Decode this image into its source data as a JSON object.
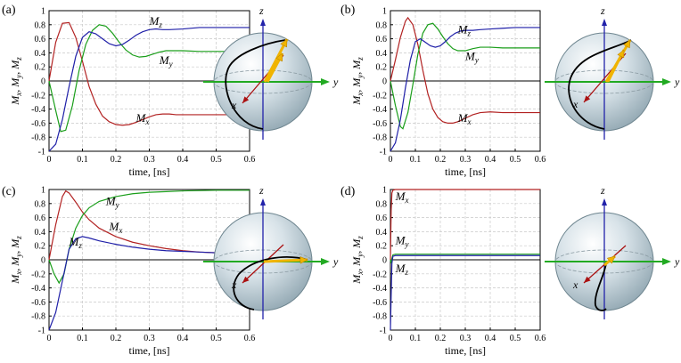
{
  "colors": {
    "Mx": "#b22222",
    "My": "#1a9e1a",
    "Mz": "#1f1fa8",
    "y_axis": "#22aa22",
    "z_axis": "#2222aa",
    "x_axis": "#aa1111",
    "arrow": "#f0b400",
    "trajectory": "#000000"
  },
  "axes_common": {
    "xlabel": "time, [ns]",
    "ylabel_main": "M",
    "ylabel_subs": [
      "x",
      "y",
      "z"
    ],
    "xlim": [
      0,
      0.6
    ],
    "ylim": [
      -1,
      1
    ],
    "xticks": [
      "0",
      "0.1",
      "0.2",
      "0.3",
      "0.4",
      "0.5",
      "0.6"
    ],
    "yticks": [
      "-1",
      "-0.8",
      "-0.6",
      "-0.4",
      "-0.2",
      "0",
      "0.2",
      "0.4",
      "0.6",
      "0.8",
      "1"
    ],
    "grid": true
  },
  "sphere_axis_labels": {
    "x": "x",
    "y": "y",
    "z": "z"
  },
  "chart_data": [
    {
      "type": "line",
      "panel": "(a)",
      "series": [
        {
          "name": "Mx",
          "label_sub": "x",
          "color": "Mx",
          "points": [
            [
              0,
              0
            ],
            [
              0.02,
              0.55
            ],
            [
              0.04,
              0.82
            ],
            [
              0.06,
              0.83
            ],
            [
              0.08,
              0.62
            ],
            [
              0.1,
              0.28
            ],
            [
              0.12,
              -0.08
            ],
            [
              0.14,
              -0.33
            ],
            [
              0.16,
              -0.5
            ],
            [
              0.18,
              -0.58
            ],
            [
              0.2,
              -0.62
            ],
            [
              0.22,
              -0.63
            ],
            [
              0.24,
              -0.62
            ],
            [
              0.26,
              -0.59
            ],
            [
              0.28,
              -0.55
            ],
            [
              0.3,
              -0.51
            ],
            [
              0.32,
              -0.48
            ],
            [
              0.34,
              -0.47
            ],
            [
              0.36,
              -0.47
            ],
            [
              0.38,
              -0.48
            ],
            [
              0.4,
              -0.48
            ],
            [
              0.45,
              -0.48
            ],
            [
              0.5,
              -0.48
            ],
            [
              0.55,
              -0.48
            ],
            [
              0.6,
              -0.48
            ]
          ]
        },
        {
          "name": "My",
          "label_sub": "y",
          "color": "My",
          "points": [
            [
              0,
              0
            ],
            [
              0.02,
              -0.42
            ],
            [
              0.035,
              -0.72
            ],
            [
              0.05,
              -0.7
            ],
            [
              0.07,
              -0.35
            ],
            [
              0.09,
              0.15
            ],
            [
              0.11,
              0.52
            ],
            [
              0.13,
              0.72
            ],
            [
              0.15,
              0.8
            ],
            [
              0.17,
              0.78
            ],
            [
              0.19,
              0.68
            ],
            [
              0.21,
              0.55
            ],
            [
              0.23,
              0.44
            ],
            [
              0.25,
              0.37
            ],
            [
              0.27,
              0.34
            ],
            [
              0.29,
              0.35
            ],
            [
              0.31,
              0.38
            ],
            [
              0.33,
              0.41
            ],
            [
              0.35,
              0.43
            ],
            [
              0.4,
              0.43
            ],
            [
              0.45,
              0.42
            ],
            [
              0.5,
              0.42
            ],
            [
              0.55,
              0.42
            ],
            [
              0.6,
              0.42
            ]
          ]
        },
        {
          "name": "Mz",
          "label_sub": "z",
          "color": "Mz",
          "points": [
            [
              0,
              -1
            ],
            [
              0.02,
              -0.9
            ],
            [
              0.04,
              -0.55
            ],
            [
              0.06,
              -0.08
            ],
            [
              0.08,
              0.35
            ],
            [
              0.1,
              0.62
            ],
            [
              0.12,
              0.7
            ],
            [
              0.14,
              0.67
            ],
            [
              0.16,
              0.6
            ],
            [
              0.18,
              0.53
            ],
            [
              0.2,
              0.5
            ],
            [
              0.22,
              0.52
            ],
            [
              0.24,
              0.58
            ],
            [
              0.26,
              0.65
            ],
            [
              0.28,
              0.7
            ],
            [
              0.3,
              0.73
            ],
            [
              0.32,
              0.74
            ],
            [
              0.34,
              0.73
            ],
            [
              0.36,
              0.73
            ],
            [
              0.4,
              0.74
            ],
            [
              0.45,
              0.76
            ],
            [
              0.5,
              0.76
            ],
            [
              0.55,
              0.76
            ],
            [
              0.6,
              0.76
            ]
          ]
        }
      ]
    },
    {
      "type": "line",
      "panel": "(b)",
      "series": [
        {
          "name": "Mx",
          "label_sub": "x",
          "color": "Mx",
          "points": [
            [
              0,
              0
            ],
            [
              0.02,
              0.3
            ],
            [
              0.04,
              0.62
            ],
            [
              0.06,
              0.85
            ],
            [
              0.07,
              0.9
            ],
            [
              0.09,
              0.8
            ],
            [
              0.11,
              0.52
            ],
            [
              0.13,
              0.15
            ],
            [
              0.15,
              -0.18
            ],
            [
              0.17,
              -0.4
            ],
            [
              0.19,
              -0.52
            ],
            [
              0.21,
              -0.58
            ],
            [
              0.23,
              -0.6
            ],
            [
              0.25,
              -0.6
            ],
            [
              0.27,
              -0.58
            ],
            [
              0.3,
              -0.53
            ],
            [
              0.33,
              -0.48
            ],
            [
              0.36,
              -0.45
            ],
            [
              0.4,
              -0.44
            ],
            [
              0.45,
              -0.45
            ],
            [
              0.5,
              -0.45
            ],
            [
              0.55,
              -0.45
            ],
            [
              0.6,
              -0.45
            ]
          ]
        },
        {
          "name": "My",
          "label_sub": "y",
          "color": "My",
          "points": [
            [
              0,
              0
            ],
            [
              0.02,
              -0.35
            ],
            [
              0.04,
              -0.65
            ],
            [
              0.05,
              -0.68
            ],
            [
              0.07,
              -0.45
            ],
            [
              0.09,
              -0.05
            ],
            [
              0.11,
              0.38
            ],
            [
              0.13,
              0.68
            ],
            [
              0.15,
              0.8
            ],
            [
              0.17,
              0.82
            ],
            [
              0.19,
              0.74
            ],
            [
              0.21,
              0.63
            ],
            [
              0.23,
              0.53
            ],
            [
              0.25,
              0.46
            ],
            [
              0.27,
              0.43
            ],
            [
              0.3,
              0.43
            ],
            [
              0.33,
              0.46
            ],
            [
              0.36,
              0.48
            ],
            [
              0.4,
              0.48
            ],
            [
              0.45,
              0.47
            ],
            [
              0.5,
              0.47
            ],
            [
              0.55,
              0.47
            ],
            [
              0.6,
              0.47
            ]
          ]
        },
        {
          "name": "Mz",
          "label_sub": "z",
          "color": "Mz",
          "points": [
            [
              0,
              -1
            ],
            [
              0.02,
              -0.88
            ],
            [
              0.04,
              -0.55
            ],
            [
              0.06,
              -0.1
            ],
            [
              0.08,
              0.3
            ],
            [
              0.1,
              0.56
            ],
            [
              0.12,
              0.6
            ],
            [
              0.14,
              0.55
            ],
            [
              0.16,
              0.5
            ],
            [
              0.18,
              0.48
            ],
            [
              0.2,
              0.5
            ],
            [
              0.22,
              0.56
            ],
            [
              0.24,
              0.63
            ],
            [
              0.26,
              0.68
            ],
            [
              0.28,
              0.71
            ],
            [
              0.3,
              0.72
            ],
            [
              0.33,
              0.72
            ],
            [
              0.36,
              0.73
            ],
            [
              0.4,
              0.74
            ],
            [
              0.45,
              0.75
            ],
            [
              0.5,
              0.76
            ],
            [
              0.55,
              0.76
            ],
            [
              0.6,
              0.76
            ]
          ]
        }
      ]
    },
    {
      "type": "line",
      "panel": "(c)",
      "series": [
        {
          "name": "Mx",
          "label_sub": "x",
          "color": "Mx",
          "points": [
            [
              0,
              0
            ],
            [
              0.02,
              0.5
            ],
            [
              0.04,
              0.9
            ],
            [
              0.05,
              0.98
            ],
            [
              0.06,
              0.95
            ],
            [
              0.08,
              0.82
            ],
            [
              0.1,
              0.68
            ],
            [
              0.12,
              0.57
            ],
            [
              0.15,
              0.45
            ],
            [
              0.2,
              0.33
            ],
            [
              0.25,
              0.25
            ],
            [
              0.3,
              0.2
            ],
            [
              0.35,
              0.16
            ],
            [
              0.4,
              0.13
            ],
            [
              0.45,
              0.11
            ],
            [
              0.5,
              0.1
            ],
            [
              0.55,
              0.09
            ],
            [
              0.6,
              0.08
            ]
          ]
        },
        {
          "name": "My",
          "label_sub": "y",
          "color": "My",
          "points": [
            [
              0,
              0
            ],
            [
              0.015,
              -0.2
            ],
            [
              0.03,
              -0.33
            ],
            [
              0.045,
              -0.2
            ],
            [
              0.06,
              0.15
            ],
            [
              0.08,
              0.45
            ],
            [
              0.1,
              0.63
            ],
            [
              0.12,
              0.74
            ],
            [
              0.15,
              0.83
            ],
            [
              0.2,
              0.9
            ],
            [
              0.25,
              0.94
            ],
            [
              0.3,
              0.96
            ],
            [
              0.35,
              0.97
            ],
            [
              0.4,
              0.98
            ],
            [
              0.5,
              0.99
            ],
            [
              0.6,
              0.99
            ]
          ]
        },
        {
          "name": "Mz",
          "label_sub": "z",
          "color": "Mz",
          "points": [
            [
              0,
              -1
            ],
            [
              0.02,
              -0.75
            ],
            [
              0.04,
              -0.3
            ],
            [
              0.06,
              0.15
            ],
            [
              0.08,
              0.3
            ],
            [
              0.1,
              0.33
            ],
            [
              0.12,
              0.31
            ],
            [
              0.15,
              0.27
            ],
            [
              0.2,
              0.22
            ],
            [
              0.25,
              0.18
            ],
            [
              0.3,
              0.15
            ],
            [
              0.35,
              0.13
            ],
            [
              0.4,
              0.12
            ],
            [
              0.45,
              0.11
            ],
            [
              0.5,
              0.1
            ],
            [
              0.55,
              0.09
            ],
            [
              0.6,
              0.08
            ]
          ]
        }
      ]
    },
    {
      "type": "line",
      "panel": "(d)",
      "series": [
        {
          "name": "Mx",
          "label_sub": "x",
          "color": "Mx",
          "points": [
            [
              0,
              0
            ],
            [
              0.003,
              0.7
            ],
            [
              0.006,
              0.95
            ],
            [
              0.01,
              0.99
            ],
            [
              0.02,
              1.0
            ],
            [
              0.1,
              1.0
            ],
            [
              0.3,
              1.0
            ],
            [
              0.6,
              1.0
            ]
          ]
        },
        {
          "name": "My",
          "label_sub": "y",
          "color": "My",
          "points": [
            [
              0,
              0
            ],
            [
              0.003,
              -0.05
            ],
            [
              0.006,
              0.02
            ],
            [
              0.01,
              0.07
            ],
            [
              0.02,
              0.08
            ],
            [
              0.05,
              0.08
            ],
            [
              0.1,
              0.08
            ],
            [
              0.3,
              0.08
            ],
            [
              0.6,
              0.08
            ]
          ]
        },
        {
          "name": "Mz",
          "label_sub": "z",
          "color": "Mz",
          "points": [
            [
              0,
              -1
            ],
            [
              0.003,
              -0.5
            ],
            [
              0.006,
              -0.05
            ],
            [
              0.01,
              0.05
            ],
            [
              0.02,
              0.06
            ],
            [
              0.05,
              0.06
            ],
            [
              0.1,
              0.06
            ],
            [
              0.3,
              0.06
            ],
            [
              0.6,
              0.06
            ]
          ]
        }
      ]
    }
  ]
}
